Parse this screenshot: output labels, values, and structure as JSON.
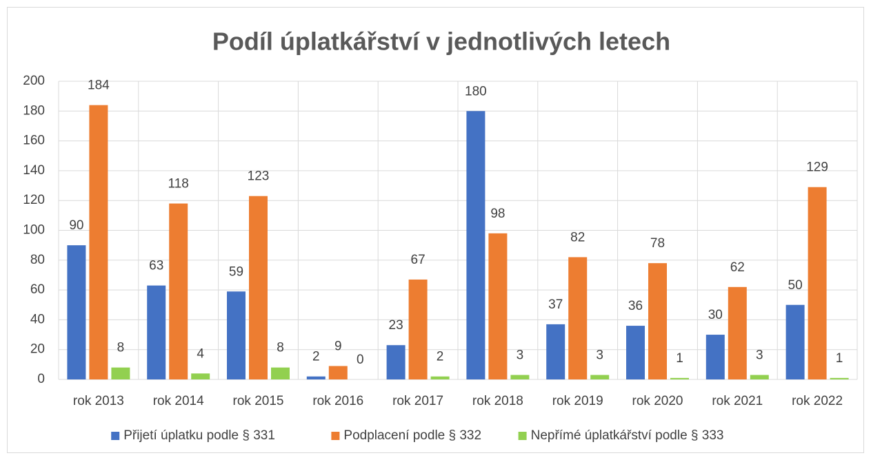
{
  "chart_data": {
    "type": "bar",
    "title": "Podíl úplatkářství v jednotlivých letech",
    "categories": [
      "rok 2013",
      "rok 2014",
      "rok 2015",
      "rok 2016",
      "rok 2017",
      "rok 2018",
      "rok 2019",
      "rok 2020",
      "rok 2021",
      "rok 2022"
    ],
    "series": [
      {
        "name": "Přijetí úplatku podle § 331",
        "color": "#4472c4",
        "values": [
          90,
          63,
          59,
          2,
          23,
          180,
          37,
          36,
          30,
          50
        ]
      },
      {
        "name": "Podplacení podle § 332",
        "color": "#ed7d31",
        "values": [
          184,
          118,
          123,
          9,
          67,
          98,
          82,
          78,
          62,
          129
        ]
      },
      {
        "name": "Nepřímé úplatkářství podle § 333",
        "color": "#92d050",
        "values": [
          8,
          4,
          8,
          0,
          2,
          3,
          3,
          1,
          3,
          1
        ]
      }
    ],
    "ylim": [
      0,
      200
    ],
    "yticks": [
      0,
      20,
      40,
      60,
      80,
      100,
      120,
      140,
      160,
      180,
      200
    ],
    "grid": true,
    "legend": "bottom"
  }
}
